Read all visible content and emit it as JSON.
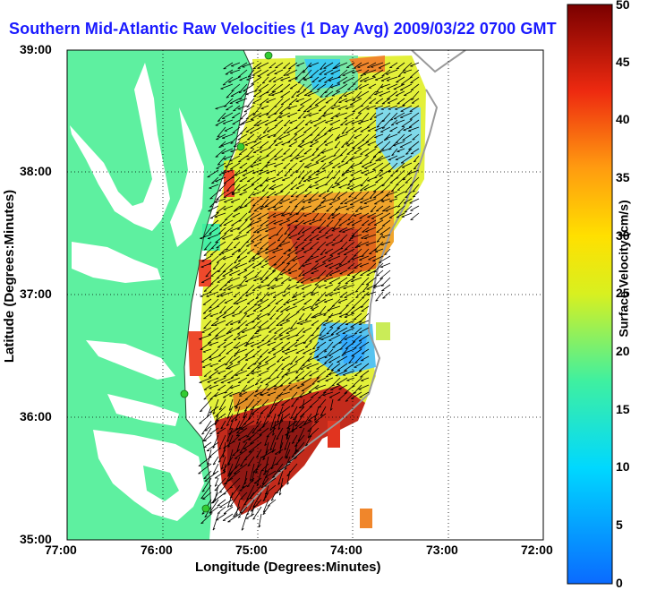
{
  "title": "Southern Mid-Atlantic Raw Velocities (1 Day Avg) 2009/03/22 0700 GMT",
  "xlabel": "Longitude (Degrees:Minutes)",
  "ylabel": "Latitude (Degrees:Minutes)",
  "xticks": [
    "77:00",
    "76:00",
    "75:00",
    "74:00",
    "73:00",
    "72:00"
  ],
  "yticks": [
    "39:00",
    "38:00",
    "37:00",
    "36:00",
    "35:00"
  ],
  "colorbar": {
    "label": "Surface Velocity (cm/s)",
    "ticks": [
      "0",
      "5",
      "10",
      "15",
      "20",
      "25",
      "30",
      "35",
      "40",
      "45",
      "50"
    ],
    "min": 0,
    "max": 50
  },
  "colors": {
    "land": "#5ef0a0",
    "water": "#ffffff",
    "title": "#1a1aff",
    "stations": "#33cc33"
  },
  "map": {
    "lon_range": [
      -77,
      -72
    ],
    "lat_range": [
      35,
      39
    ],
    "grid": "dotted"
  }
}
